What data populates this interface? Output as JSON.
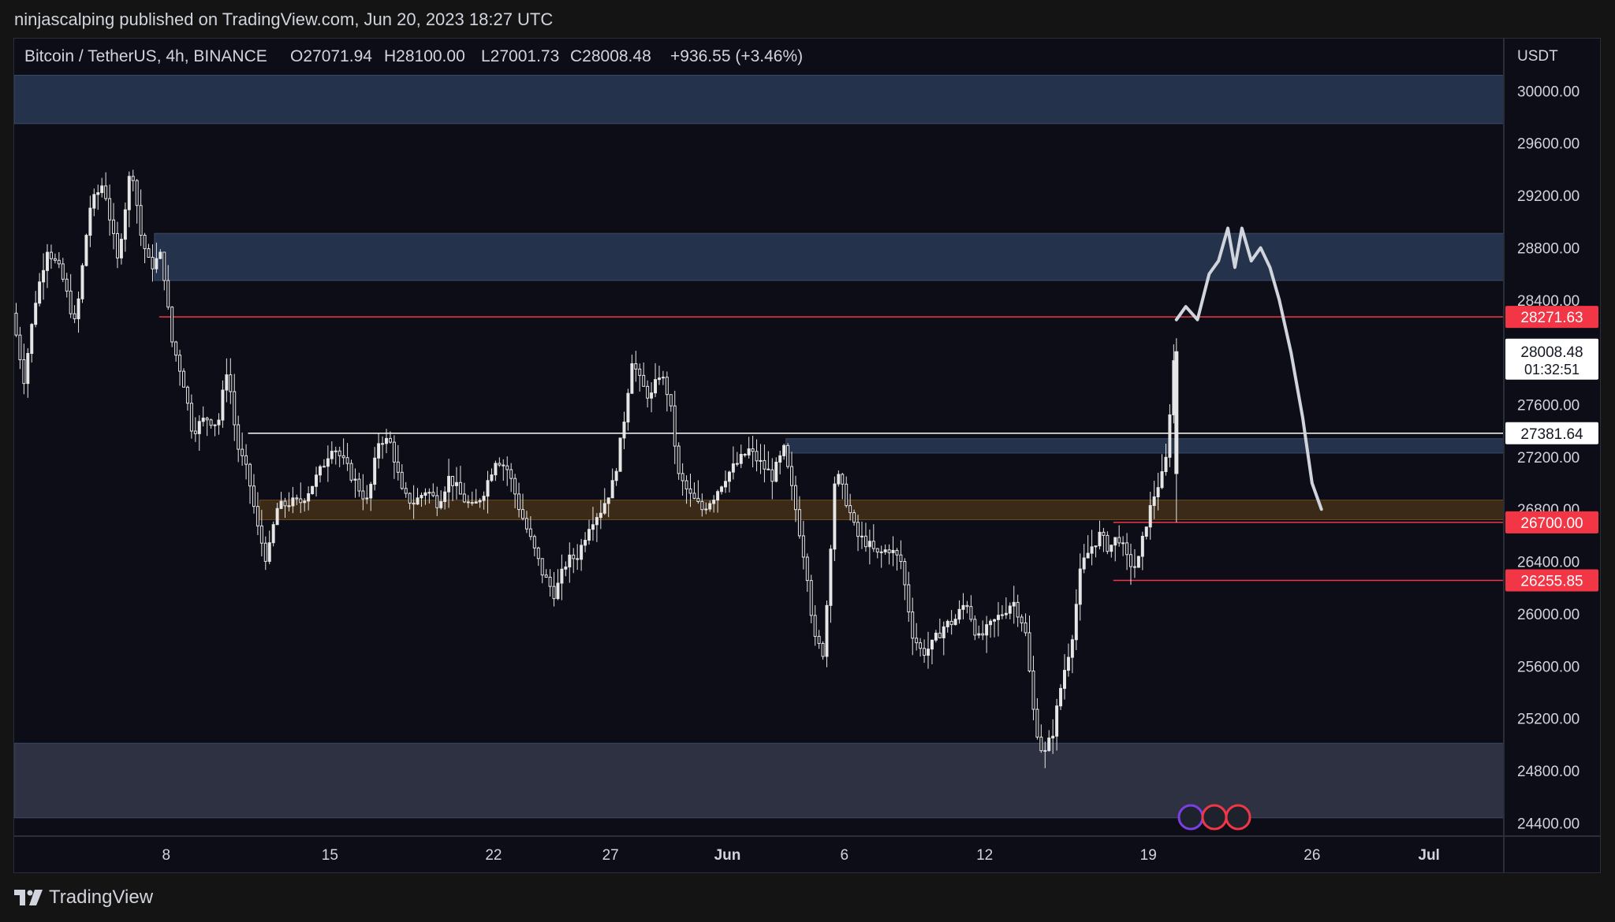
{
  "header": {
    "publish_line": "ninjascalping published on TradingView.com, Jun 20, 2023 18:27 UTC"
  },
  "footer": {
    "brand": "TradingView"
  },
  "colors": {
    "background": "#0d0d17",
    "candle": "#e6e6e6",
    "support_line": "#f23645",
    "level_line": "#ffffff",
    "zone_fill": "#2a3a55",
    "orange_zone_fill": "#4a3418",
    "projection": "#d0d4dc"
  },
  "chart_data": {
    "type": "candlestick",
    "title": "Bitcoin / TetherUS, 4h, BINANCE",
    "ohlc_readout": {
      "open": "O27071.94",
      "high": "H28100.00",
      "low": "L27001.73",
      "close": "C28008.48",
      "change": "+936.55 (+3.46%)"
    },
    "currency": "USDT",
    "ylim": [
      24300,
      30400
    ],
    "y_ticks": [
      "30000.00",
      "29600.00",
      "29200.00",
      "28800.00",
      "28400.00",
      "27600.00",
      "27200.00",
      "26800.00",
      "26400.00",
      "26000.00",
      "25600.00",
      "25200.00",
      "24800.00",
      "24400.00"
    ],
    "x_ticks": [
      {
        "label": "8",
        "day": 8
      },
      {
        "label": "15",
        "day": 15
      },
      {
        "label": "22",
        "day": 22
      },
      {
        "label": "27",
        "day": 27
      },
      {
        "label": "Jun",
        "day": 32
      },
      {
        "label": "6",
        "day": 37
      },
      {
        "label": "12",
        "day": 43
      },
      {
        "label": "19",
        "day": 50
      },
      {
        "label": "26",
        "day": 57
      },
      {
        "label": "Jul",
        "day": 62
      }
    ],
    "x_range_days": [
      1.5,
      65.2
    ],
    "zones": [
      {
        "from": 29750,
        "to": 30120,
        "kind": "supply",
        "x_start_day": 1.5,
        "x_end_day": 65.2
      },
      {
        "from": 28550,
        "to": 28910,
        "kind": "supply",
        "x_start_day": 7.5,
        "x_end_day": 65.2
      },
      {
        "from": 27230,
        "to": 27340,
        "kind": "supply",
        "x_start_day": 34.5,
        "x_end_day": 65.2
      },
      {
        "from": 26720,
        "to": 26870,
        "kind": "orange",
        "x_start_day": 12,
        "x_end_day": 65.2
      },
      {
        "from": 24440,
        "to": 25010,
        "kind": "demand",
        "x_start_day": 1.5,
        "x_end_day": 65.2
      }
    ],
    "horizontal_levels": [
      {
        "price": 28271.63,
        "label": "28271.63",
        "color": "red",
        "x_start_day": 7.7
      },
      {
        "price": 27381.64,
        "label": "27381.64",
        "color": "white",
        "x_start_day": 11.5
      },
      {
        "price": 26700.0,
        "label": "26700.00",
        "color": "red",
        "x_start_day": 48.5
      },
      {
        "price": 26255.85,
        "label": "26255.85",
        "color": "red",
        "x_start_day": 48.5
      }
    ],
    "last_price": {
      "value": 28008.48,
      "label": "28008.48",
      "countdown": "01:32:51"
    },
    "price_path": [
      [
        1.5,
        28300
      ],
      [
        2.0,
        27800
      ],
      [
        2.5,
        28400
      ],
      [
        3.0,
        28800
      ],
      [
        3.6,
        28600
      ],
      [
        4.2,
        28200
      ],
      [
        4.8,
        29100
      ],
      [
        5.4,
        29300
      ],
      [
        6.0,
        28700
      ],
      [
        6.6,
        29450
      ],
      [
        7.0,
        28900
      ],
      [
        7.4,
        28650
      ],
      [
        7.9,
        28750
      ],
      [
        8.3,
        28100
      ],
      [
        8.8,
        27800
      ],
      [
        9.2,
        27400
      ],
      [
        9.8,
        27500
      ],
      [
        10.3,
        27450
      ],
      [
        10.7,
        27900
      ],
      [
        11.1,
        27300
      ],
      [
        11.6,
        27050
      ],
      [
        12.0,
        26650
      ],
      [
        12.4,
        26400
      ],
      [
        12.8,
        26800
      ],
      [
        13.3,
        26850
      ],
      [
        13.8,
        26850
      ],
      [
        14.2,
        26950
      ],
      [
        14.7,
        27100
      ],
      [
        15.2,
        27300
      ],
      [
        15.7,
        27150
      ],
      [
        16.2,
        27000
      ],
      [
        16.7,
        26850
      ],
      [
        17.2,
        27350
      ],
      [
        17.7,
        27300
      ],
      [
        18.2,
        26900
      ],
      [
        18.7,
        26850
      ],
      [
        19.2,
        26950
      ],
      [
        19.7,
        26850
      ],
      [
        20.2,
        27050
      ],
      [
        20.7,
        26900
      ],
      [
        21.2,
        26800
      ],
      [
        21.7,
        26950
      ],
      [
        22.2,
        27200
      ],
      [
        22.7,
        27100
      ],
      [
        23.2,
        26800
      ],
      [
        23.7,
        26550
      ],
      [
        24.2,
        26300
      ],
      [
        24.7,
        26150
      ],
      [
        25.2,
        26400
      ],
      [
        25.7,
        26450
      ],
      [
        26.2,
        26700
      ],
      [
        26.7,
        26800
      ],
      [
        27.2,
        27000
      ],
      [
        27.6,
        27400
      ],
      [
        28.0,
        27950
      ],
      [
        28.4,
        27750
      ],
      [
        28.8,
        27650
      ],
      [
        29.2,
        27850
      ],
      [
        29.6,
        27650
      ],
      [
        30.0,
        27050
      ],
      [
        30.5,
        26900
      ],
      [
        31.0,
        26800
      ],
      [
        31.5,
        26900
      ],
      [
        32.0,
        27050
      ],
      [
        32.5,
        27150
      ],
      [
        33.0,
        27250
      ],
      [
        33.5,
        27150
      ],
      [
        34.0,
        27050
      ],
      [
        34.5,
        27250
      ],
      [
        35.0,
        26800
      ],
      [
        35.5,
        26300
      ],
      [
        35.8,
        25800
      ],
      [
        36.2,
        25700
      ],
      [
        36.7,
        27100
      ],
      [
        37.2,
        26850
      ],
      [
        37.6,
        26600
      ],
      [
        38.0,
        26550
      ],
      [
        38.5,
        26450
      ],
      [
        39.0,
        26500
      ],
      [
        39.5,
        26400
      ],
      [
        40.0,
        25850
      ],
      [
        40.4,
        25700
      ],
      [
        40.8,
        25750
      ],
      [
        41.3,
        25900
      ],
      [
        41.8,
        25950
      ],
      [
        42.3,
        26100
      ],
      [
        42.8,
        25800
      ],
      [
        43.3,
        25900
      ],
      [
        43.8,
        26000
      ],
      [
        44.3,
        26100
      ],
      [
        44.8,
        25900
      ],
      [
        45.2,
        25200
      ],
      [
        45.6,
        24900
      ],
      [
        46.0,
        25100
      ],
      [
        46.4,
        25500
      ],
      [
        46.8,
        25800
      ],
      [
        47.2,
        26350
      ],
      [
        47.6,
        26500
      ],
      [
        48.0,
        26600
      ],
      [
        48.4,
        26500
      ],
      [
        48.8,
        26600
      ],
      [
        49.2,
        26400
      ],
      [
        49.6,
        26350
      ],
      [
        50.0,
        26700
      ],
      [
        50.4,
        26950
      ],
      [
        50.8,
        27100
      ],
      [
        51.2,
        28008
      ]
    ],
    "projection_path": [
      [
        51.2,
        28250
      ],
      [
        51.6,
        28350
      ],
      [
        52.1,
        28250
      ],
      [
        52.6,
        28600
      ],
      [
        53.0,
        28700
      ],
      [
        53.4,
        28950
      ],
      [
        53.7,
        28650
      ],
      [
        54.0,
        28950
      ],
      [
        54.4,
        28700
      ],
      [
        54.8,
        28800
      ],
      [
        55.2,
        28650
      ],
      [
        55.6,
        28400
      ],
      [
        56.1,
        28000
      ],
      [
        56.6,
        27500
      ],
      [
        57.0,
        27000
      ],
      [
        57.4,
        26800
      ]
    ]
  }
}
